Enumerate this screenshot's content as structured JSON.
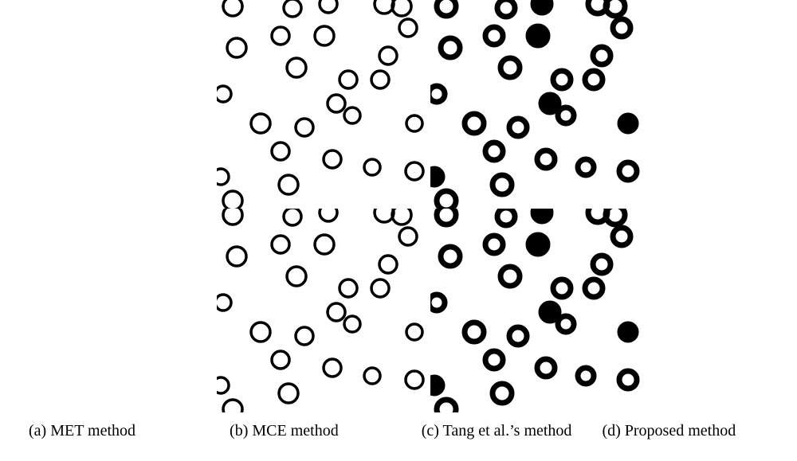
{
  "figure": {
    "captions": [
      "(a) MET method",
      "(b) MCE method",
      "(c) Tang et al.’s method",
      "(d) Proposed method"
    ]
  }
}
